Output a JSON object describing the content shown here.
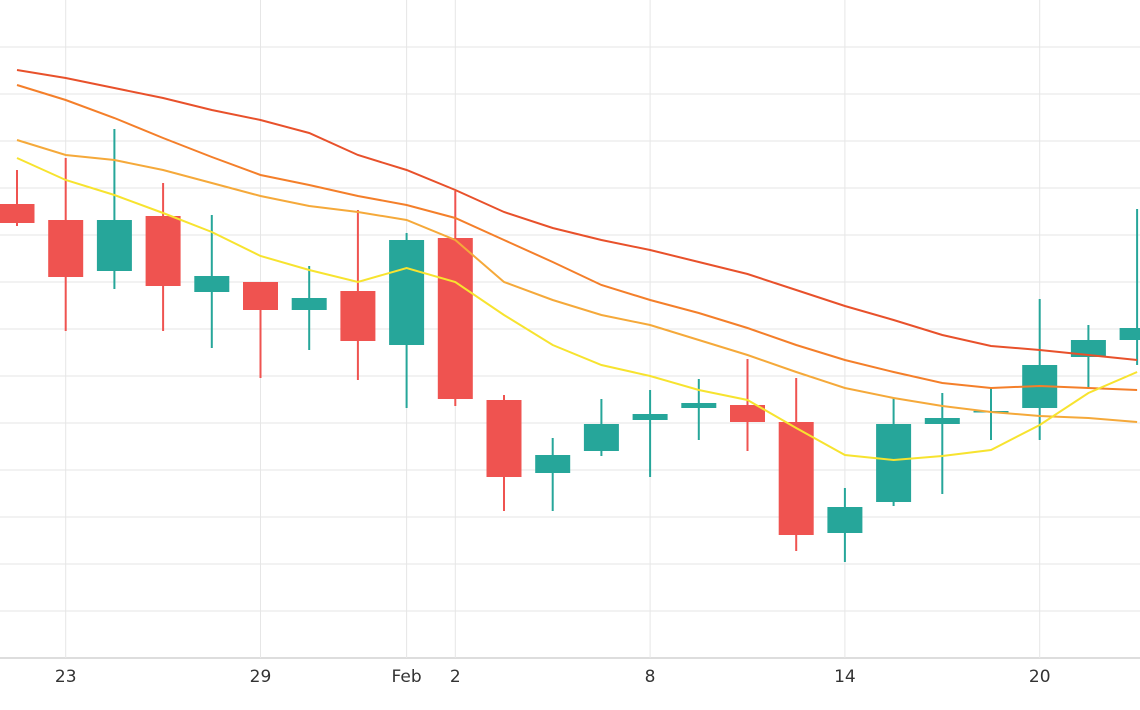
{
  "chart_data": {
    "type": "candlestick",
    "categories": [
      null,
      "23",
      null,
      null,
      null,
      "29",
      null,
      null,
      "Feb",
      "2",
      null,
      null,
      null,
      "8",
      null,
      null,
      null,
      "14",
      null,
      null,
      null,
      "20",
      null,
      null
    ],
    "open": [
      454,
      438,
      387,
      442,
      366,
      376,
      348,
      367,
      313,
      420,
      258,
      185,
      207,
      238,
      250,
      253,
      236,
      125,
      156,
      234,
      246,
      250,
      301,
      318
    ],
    "high": [
      488,
      500,
      529,
      475,
      443,
      376,
      392,
      448,
      425,
      467,
      263,
      220,
      259,
      268,
      279,
      299,
      280,
      170,
      260,
      265,
      270,
      359,
      333,
      449
    ],
    "low": [
      432,
      327,
      369,
      327,
      310,
      280,
      308,
      278,
      250,
      252,
      147,
      147,
      202,
      181,
      218,
      207,
      107,
      96,
      152,
      164,
      218,
      218,
      269,
      293
    ],
    "close": [
      435,
      381,
      438,
      372,
      382,
      348,
      360,
      317,
      418,
      259,
      181,
      203,
      234,
      244,
      255,
      236,
      123,
      151,
      234,
      240,
      247,
      293,
      318,
      330
    ],
    "up_color": "#26a69a",
    "down_color": "#ef5350",
    "lines": [
      {
        "color": "#e8512b",
        "values": [
          588,
          580,
          570,
          560,
          548,
          538,
          525,
          503,
          488,
          468,
          446,
          430,
          418,
          408,
          396,
          384,
          368,
          352,
          338,
          323,
          312,
          308,
          303,
          298
        ]
      },
      {
        "color": "#f47f2a",
        "values": [
          573,
          558,
          540,
          520,
          501,
          483,
          473,
          462,
          453,
          440,
          418,
          396,
          373,
          358,
          345,
          330,
          313,
          298,
          286,
          275,
          270,
          272,
          270,
          268
        ]
      },
      {
        "color": "#f5a93a",
        "values": [
          518,
          503,
          498,
          488,
          475,
          462,
          452,
          446,
          438,
          418,
          376,
          358,
          343,
          333,
          318,
          303,
          286,
          270,
          260,
          252,
          246,
          242,
          240,
          236
        ]
      },
      {
        "color": "#f7e32f",
        "values": [
          500,
          478,
          463,
          445,
          426,
          402,
          388,
          376,
          390,
          376,
          343,
          313,
          293,
          282,
          268,
          258,
          230,
          203,
          198,
          202,
          208,
          233,
          265,
          286
        ]
      }
    ],
    "ylim": [
      0,
      658
    ],
    "yticks": [
      0,
      47,
      94,
      141,
      188,
      235,
      282,
      329,
      376,
      423,
      470,
      517,
      564,
      611
    ],
    "grid": true
  }
}
